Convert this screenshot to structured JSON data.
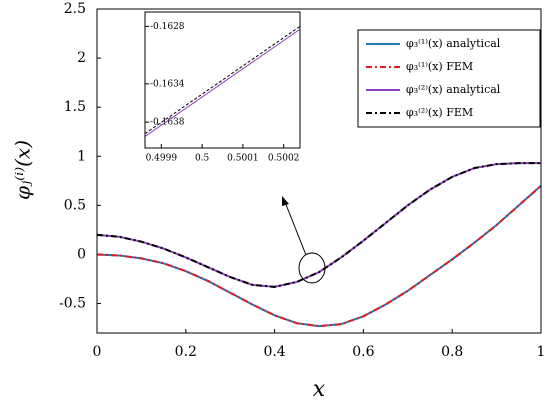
{
  "chart_data": [
    {
      "type": "line",
      "xlabel": "x",
      "ylabel": "φⱼ⁽ⁱ⁾(x)",
      "xlim": [
        0,
        1
      ],
      "xticks": [
        0,
        0.2,
        0.4,
        0.6,
        0.8,
        1
      ],
      "ylim": [
        -0.8,
        2.5
      ],
      "yticks": [
        -0.5,
        0,
        0.5,
        1,
        1.5,
        2,
        2.5
      ],
      "x": [
        0,
        0.05,
        0.1,
        0.15,
        0.2,
        0.25,
        0.3,
        0.35,
        0.4,
        0.45,
        0.5,
        0.55,
        0.6,
        0.65,
        0.7,
        0.75,
        0.8,
        0.85,
        0.9,
        0.95,
        1
      ],
      "legend": "upper right",
      "series": [
        {
          "name": "φ₃⁽¹⁾(x) analytical",
          "color": "#1f77b4",
          "dash": "none",
          "values": [
            0,
            -0.01,
            -0.04,
            -0.09,
            -0.17,
            -0.27,
            -0.39,
            -0.51,
            -0.62,
            -0.7,
            -0.73,
            -0.71,
            -0.63,
            -0.51,
            -0.37,
            -0.21,
            -0.05,
            0.12,
            0.3,
            0.5,
            0.7
          ]
        },
        {
          "name": "φ₃⁽¹⁾(x) FEM",
          "color": "#e41a1c",
          "dash": "6,3,2,3",
          "values": [
            0,
            -0.01,
            -0.04,
            -0.09,
            -0.17,
            -0.27,
            -0.39,
            -0.51,
            -0.62,
            -0.7,
            -0.73,
            -0.71,
            -0.63,
            -0.51,
            -0.37,
            -0.21,
            -0.05,
            0.12,
            0.3,
            0.5,
            0.7
          ]
        },
        {
          "name": "φ₃⁽²⁾(x) analytical",
          "color": "#8e3fbf",
          "dash": "none",
          "values": [
            0.2,
            0.18,
            0.13,
            0.06,
            -0.03,
            -0.13,
            -0.23,
            -0.31,
            -0.33,
            -0.28,
            -0.18,
            -0.03,
            0.14,
            0.32,
            0.5,
            0.66,
            0.79,
            0.88,
            0.92,
            0.93,
            0.93
          ]
        },
        {
          "name": "φ₃⁽²⁾(x) FEM",
          "color": "#000000",
          "dash": "6,3,2,3",
          "values": [
            0.2,
            0.18,
            0.13,
            0.06,
            -0.03,
            -0.13,
            -0.23,
            -0.31,
            -0.33,
            -0.28,
            -0.18,
            -0.03,
            0.14,
            0.32,
            0.5,
            0.66,
            0.79,
            0.88,
            0.92,
            0.93,
            0.93
          ]
        }
      ]
    },
    {
      "type": "line",
      "xlim": [
        0.49986,
        0.50024
      ],
      "xticks": [
        0.4999,
        0.5,
        0.5001,
        0.5002
      ],
      "ylim": [
        -0.16407,
        -0.16265
      ],
      "yticks": [
        -0.1638,
        -0.1634,
        -0.1628
      ],
      "x": [
        0.49986,
        0.50024
      ],
      "series": [
        {
          "color": "#8e3fbf",
          "dash": "none",
          "values": [
            -0.16395,
            -0.16283
          ]
        },
        {
          "color": "#000000",
          "dash": "3,2",
          "values": [
            -0.16392,
            -0.1628
          ]
        }
      ]
    }
  ]
}
